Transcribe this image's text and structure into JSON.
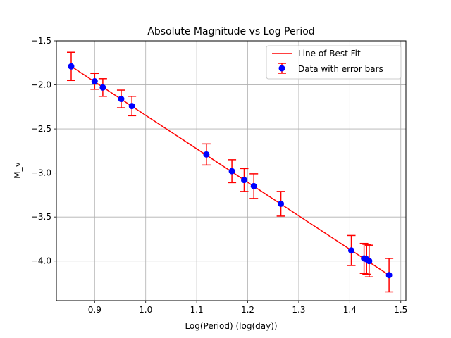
{
  "chart_data": {
    "type": "scatter",
    "title": "Absolute Magnitude vs Log Period",
    "xlabel": "Log(Period) (log(day))",
    "ylabel": "M_v",
    "xlim": [
      0.825,
      1.51
    ],
    "ylim": [
      -4.45,
      -1.5
    ],
    "xticks": [
      0.9,
      1.0,
      1.1,
      1.2,
      1.3,
      1.4,
      1.5
    ],
    "xtick_labels": [
      "0.9",
      "1.0",
      "1.1",
      "1.2",
      "1.3",
      "1.4",
      "1.5"
    ],
    "yticks": [
      -1.5,
      -2.0,
      -2.5,
      -3.0,
      -3.5,
      -4.0
    ],
    "ytick_labels": [
      "−1.5",
      "−2.0",
      "−2.5",
      "−3.0",
      "−3.5",
      "−4.0"
    ],
    "grid": true,
    "legend": {
      "placement": "upper-right",
      "entries": [
        "Line of Best Fit",
        "Data with error bars"
      ]
    },
    "colors": {
      "points": "#0000ff",
      "error_bars": "#ff0000",
      "fit_line": "#ff0000",
      "grid": "#b0b0b0"
    },
    "series": [
      {
        "name": "Data with error bars",
        "style": "points-with-errorbars",
        "x": [
          0.854,
          0.9,
          0.916,
          0.952,
          0.973,
          1.119,
          1.169,
          1.193,
          1.212,
          1.265,
          1.403,
          1.428,
          1.433,
          1.438,
          1.477
        ],
        "y": [
          -1.79,
          -1.96,
          -2.03,
          -2.16,
          -2.24,
          -2.79,
          -2.98,
          -3.08,
          -3.15,
          -3.35,
          -3.88,
          -3.97,
          -3.98,
          -4.0,
          -4.16
        ],
        "yerr": [
          0.16,
          0.09,
          0.1,
          0.1,
          0.11,
          0.12,
          0.13,
          0.13,
          0.14,
          0.14,
          0.17,
          0.17,
          0.17,
          0.18,
          0.19
        ]
      },
      {
        "name": "Line of Best Fit",
        "style": "line",
        "x": [
          0.854,
          1.477
        ],
        "y": [
          -1.79,
          -4.16
        ]
      }
    ]
  }
}
